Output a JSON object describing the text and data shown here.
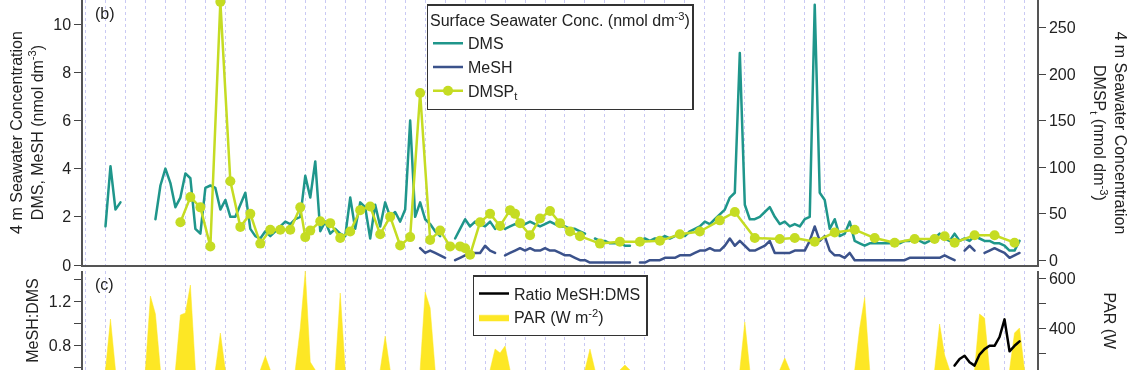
{
  "chart_data": [
    {
      "type": "line",
      "annotations": [
        "(b)"
      ],
      "ylabel": "4 m Seawater Concentration\nDMS, MeSH (nmol dm$^{-3}$)",
      "y2label": "4 m Seawater Concentration\nDMSP$_{t}$ (nmol dm$^{-3}$)",
      "legend_title": "Surface Seawater Conc. (nmol dm$^{-3}$)",
      "ylim": [
        0,
        11
      ],
      "yticks": [
        0,
        2,
        4,
        6,
        8,
        10
      ],
      "y2lim": [
        -5,
        280
      ],
      "y2ticks": [
        0,
        50,
        100,
        150,
        200,
        250
      ],
      "grid": "x",
      "legend": "top",
      "tick_labels": "y",
      "categories": [
        null,
        null,
        null,
        null,
        null,
        null,
        null,
        null,
        null,
        null,
        null,
        null,
        null,
        null,
        null,
        null,
        null,
        null,
        null,
        null,
        null,
        null,
        null,
        null,
        null,
        null,
        null,
        null,
        null,
        null,
        null,
        null,
        null,
        null,
        null,
        null,
        null,
        null,
        null,
        null,
        null,
        null,
        null,
        null,
        null,
        null,
        null,
        null,
        null,
        null,
        null,
        null,
        null,
        null,
        null,
        null,
        null,
        null,
        null,
        null,
        null,
        null,
        null,
        null,
        null,
        null,
        null,
        null,
        null,
        null,
        null,
        null,
        null,
        null,
        null,
        null,
        null,
        null,
        null,
        null,
        null,
        null,
        null,
        null,
        null,
        null,
        null,
        null,
        null,
        null,
        null,
        null,
        null,
        null,
        null,
        null,
        null,
        null,
        null,
        null,
        null,
        null,
        null,
        null,
        null,
        null,
        null,
        null,
        null,
        null,
        null,
        null,
        null,
        null,
        null,
        null,
        null,
        null,
        null,
        null,
        null,
        null,
        null,
        null,
        null,
        null,
        null,
        null,
        null,
        null,
        null,
        null,
        null,
        null,
        null,
        null,
        null,
        null,
        null,
        null,
        null,
        null,
        null,
        null,
        null,
        null,
        null,
        null,
        null,
        null,
        null,
        null,
        null,
        null,
        null,
        null,
        null,
        null,
        null,
        null,
        null,
        null,
        null,
        null,
        null,
        null,
        null,
        null,
        null,
        null,
        null,
        null,
        null,
        null,
        null,
        null,
        null,
        null,
        null,
        null,
        null,
        null,
        null,
        null,
        null,
        null,
        null,
        null,
        null,
        null,
        null
      ],
      "series": [
        {
          "name": "DMS",
          "color": "#1f968b",
          "values": [
            null,
            null,
            null,
            null,
            1.6,
            4.1,
            2.3,
            2.6,
            null,
            null,
            null,
            null,
            null,
            null,
            1.9,
            3.3,
            4.0,
            3.4,
            2.4,
            2.8,
            3.8,
            3.6,
            1.5,
            1.3,
            3.2,
            3.3,
            3.2,
            2.3,
            2.7,
            2.0,
            2.0,
            2.5,
            3.0,
            1.5,
            1.2,
            1.1,
            1.4,
            1.2,
            1.4,
            1.6,
            1.8,
            1.7,
            1.9,
            2.0,
            3.7,
            2.8,
            4.3,
            1.4,
            1.8,
            1.3,
            1.5,
            1.3,
            1.2,
            2.8,
            1.5,
            2.6,
            2.4,
            1.1,
            2.5,
            1.6,
            2.6,
            2.0,
            2.2,
            1.8,
            2.3,
            6.0,
            2.0,
            2.6,
            1.9,
            1.7,
            1.4,
            1.2,
            null,
            null,
            1.1,
            1.5,
            1.9,
            1.6,
            1.8,
            1.7,
            1.6,
            1.8,
            1.5,
            null,
            1.5,
            1.6,
            1.7,
            1.6,
            1.7,
            1.8,
            1.7,
            1.6,
            1.7,
            1.8,
            1.7,
            1.6,
            1.6,
            1.5,
            1.5,
            1.4,
            1.3,
            null,
            1.1,
            1.0,
            1.0,
            0.9,
            0.9,
            0.9,
            0.8,
            0.8,
            null,
            1.0,
            1.1,
            1.0,
            1.1,
            1.1,
            1.2,
            1.1,
            1.2,
            1.3,
            1.2,
            1.4,
            1.5,
            1.6,
            1.8,
            1.7,
            1.9,
            2.1,
            2.3,
            2.8,
            3.0,
            8.8,
            2.5,
            1.9,
            1.9,
            2.0,
            2.2,
            2.4,
            2.0,
            1.7,
            1.8,
            1.6,
            1.7,
            1.6,
            1.9,
            2.0,
            10.8,
            3.0,
            2.7,
            1.5,
            1.9,
            1.2,
            1.3,
            1.8,
            1.0,
            0.9,
            0.8,
            0.9,
            0.9,
            0.9,
            0.9,
            0.9,
            0.9,
            0.9,
            1.0,
            1.0,
            1.1,
            1.0,
            0.9,
            1.0,
            1.1,
            1.3,
            1.1,
            1.0,
            1.3,
            1.0,
            1.1,
            1.0,
            1.2,
            1.1,
            1.0,
            1.0,
            0.9,
            0.9,
            0.8,
            0.6,
            0.6,
            1.0,
            null,
            null,
            null
          ]
        },
        {
          "name": "MeSH",
          "color": "#3b528b",
          "values": [
            null,
            null,
            null,
            null,
            null,
            null,
            null,
            null,
            null,
            null,
            null,
            null,
            null,
            null,
            null,
            null,
            null,
            null,
            null,
            null,
            null,
            null,
            null,
            null,
            null,
            null,
            null,
            null,
            null,
            null,
            null,
            null,
            null,
            null,
            null,
            null,
            null,
            null,
            null,
            null,
            null,
            null,
            null,
            null,
            null,
            null,
            null,
            null,
            null,
            null,
            null,
            null,
            null,
            null,
            null,
            null,
            null,
            null,
            null,
            null,
            null,
            null,
            null,
            null,
            null,
            null,
            null,
            0.7,
            0.5,
            0.6,
            0.5,
            0.4,
            0.3,
            null,
            0.2,
            0.3,
            0.4,
            0.5,
            0.5,
            0.5,
            0.8,
            0.6,
            0.5,
            null,
            0.4,
            0.5,
            0.6,
            0.7,
            0.6,
            0.7,
            0.6,
            0.6,
            0.7,
            0.6,
            0.6,
            0.5,
            0.4,
            0.4,
            0.3,
            0.2,
            0.2,
            0.1,
            0.1,
            0.1,
            0.1,
            0.1,
            0.1,
            0.1,
            0.1,
            0.1,
            null,
            0.1,
            0.1,
            0.2,
            0.2,
            0.2,
            0.3,
            0.3,
            0.3,
            0.4,
            0.4,
            0.4,
            0.5,
            0.6,
            0.6,
            0.7,
            0.6,
            0.6,
            0.8,
            1.1,
            0.8,
            1.0,
            0.8,
            0.6,
            0.6,
            0.7,
            0.8,
            1.0,
            0.5,
            0.5,
            0.5,
            0.5,
            0.6,
            0.6,
            0.6,
            1.0,
            1.6,
            1.0,
            1.2,
            0.6,
            0.4,
            0.4,
            0.3,
            0.5,
            0.2,
            0.2,
            0.2,
            0.2,
            0.2,
            0.2,
            0.2,
            0.2,
            0.2,
            0.2,
            0.2,
            0.3,
            0.3,
            0.3,
            0.3,
            0.3,
            0.3,
            0.3,
            0.4,
            0.3,
            0.2,
            null,
            0.6,
            0.8,
            0.6,
            null,
            0.5,
            0.6,
            0.7,
            0.6,
            0.5,
            0.3,
            0.4,
            0.5,
            null,
            null,
            null
          ]
        },
        {
          "name": "DMSP$_{t}$",
          "color": "#c5dc23",
          "axis": "y2",
          "marker": "circle",
          "values": [
            null,
            null,
            null,
            null,
            null,
            null,
            null,
            null,
            null,
            null,
            null,
            null,
            null,
            null,
            null,
            null,
            null,
            null,
            null,
            41,
            null,
            68,
            null,
            57,
            null,
            15,
            null,
            278,
            null,
            85,
            null,
            36,
            null,
            50,
            null,
            18,
            null,
            33,
            null,
            33,
            null,
            33,
            null,
            57,
            25,
            32,
            null,
            42,
            null,
            40,
            null,
            24,
            null,
            31,
            null,
            54,
            null,
            58,
            null,
            28,
            null,
            47,
            null,
            16,
            null,
            25,
            null,
            180,
            null,
            22,
            null,
            32,
            null,
            15,
            null,
            15,
            13,
            6,
            null,
            41,
            null,
            50,
            null,
            37,
            null,
            54,
            50,
            40,
            null,
            27,
            null,
            45,
            null,
            53,
            null,
            40,
            null,
            31,
            null,
            26,
            null,
            null,
            null,
            18,
            null,
            null,
            null,
            20,
            null,
            null,
            null,
            20,
            null,
            null,
            null,
            21,
            null,
            null,
            null,
            28,
            null,
            null,
            null,
            31,
            null,
            null,
            null,
            43,
            null,
            null,
            52,
            null,
            null,
            null,
            24,
            null,
            null,
            null,
            null,
            23,
            null,
            null,
            24,
            null,
            null,
            null,
            20,
            null,
            null,
            null,
            30,
            null,
            null,
            null,
            33,
            null,
            null,
            null,
            24,
            null,
            null,
            null,
            19,
            null,
            null,
            null,
            23,
            null,
            null,
            null,
            23,
            null,
            26,
            null,
            19,
            null,
            null,
            null,
            27,
            null,
            null,
            null,
            27,
            null,
            null,
            null,
            19,
            null,
            null,
            null,
            null
          ]
        }
      ]
    },
    {
      "type": "line",
      "annotations": [
        "(c)"
      ],
      "ylabel": "MeSH:DMS",
      "y2label": "PAR (W",
      "ylim": [
        0.58,
        1.48
      ],
      "yticks": [
        {
          "value": 1.4,
          "label": null
        },
        1.2,
        {
          "value": 1.0,
          "label": null
        },
        0.8,
        {
          "value": 0.6,
          "label": null
        }
      ],
      "y2lim": [
        232,
        628
      ],
      "y2ticks": [
        600,
        {
          "value": 500,
          "label": null
        },
        400,
        {
          "value": 300,
          "label": null
        }
      ],
      "grid": "x",
      "legend": "top",
      "tick_labels": "y",
      "categories": [
        null,
        null,
        null,
        null,
        null,
        null,
        null,
        null,
        null,
        null,
        null,
        null,
        null,
        null,
        null,
        null,
        null,
        null,
        null,
        null,
        null,
        null,
        null,
        null,
        null,
        null,
        null,
        null,
        null,
        null,
        null,
        null,
        null,
        null,
        null,
        null,
        null,
        null,
        null,
        null,
        null,
        null,
        null,
        null,
        null,
        null,
        null,
        null,
        null,
        null,
        null,
        null,
        null,
        null,
        null,
        null,
        null,
        null,
        null,
        null,
        null,
        null,
        null,
        null,
        null,
        null,
        null,
        null,
        null,
        null,
        null,
        null,
        null,
        null,
        null,
        null,
        null,
        null,
        null,
        null,
        null,
        null,
        null,
        null,
        null,
        null,
        null,
        null,
        null,
        null,
        null,
        null,
        null,
        null,
        null,
        null,
        null,
        null,
        null,
        null,
        null,
        null,
        null,
        null,
        null,
        null,
        null,
        null,
        null,
        null,
        null,
        null,
        null,
        null,
        null,
        null,
        null,
        null,
        null,
        null,
        null,
        null,
        null,
        null,
        null,
        null,
        null,
        null,
        null,
        null,
        null,
        null,
        null,
        null,
        null,
        null,
        null,
        null,
        null,
        null,
        null,
        null,
        null,
        null,
        null,
        null,
        null,
        null,
        null,
        null,
        null,
        null,
        null,
        null,
        null,
        null,
        null,
        null,
        null,
        null,
        null,
        null,
        null,
        null,
        null,
        null,
        null,
        null,
        null,
        null,
        null,
        null,
        null,
        null,
        null,
        null,
        null,
        null,
        null,
        null,
        null,
        null,
        null,
        null,
        null,
        null,
        null,
        null,
        null,
        null,
        null
      ],
      "series": [
        {
          "name": "Ratio MeSH:DMS",
          "color": "#000000",
          "values": [
            null,
            null,
            null,
            null,
            null,
            null,
            null,
            null,
            null,
            null,
            null,
            null,
            null,
            null,
            null,
            null,
            null,
            null,
            null,
            null,
            null,
            null,
            null,
            null,
            null,
            null,
            null,
            null,
            null,
            null,
            null,
            null,
            null,
            null,
            null,
            null,
            null,
            null,
            null,
            null,
            null,
            null,
            null,
            null,
            null,
            null,
            null,
            null,
            null,
            null,
            null,
            null,
            null,
            null,
            null,
            null,
            null,
            null,
            null,
            null,
            null,
            null,
            null,
            null,
            null,
            null,
            null,
            null,
            null,
            null,
            null,
            null,
            null,
            null,
            null,
            null,
            null,
            null,
            null,
            null,
            null,
            null,
            null,
            null,
            null,
            null,
            null,
            null,
            null,
            null,
            null,
            null,
            null,
            null,
            null,
            null,
            null,
            null,
            null,
            null,
            null,
            null,
            null,
            null,
            null,
            null,
            null,
            null,
            null,
            null,
            null,
            null,
            null,
            null,
            null,
            null,
            null,
            null,
            null,
            null,
            null,
            null,
            null,
            null,
            null,
            null,
            null,
            null,
            null,
            null,
            null,
            null,
            null,
            null,
            null,
            null,
            null,
            null,
            null,
            null,
            null,
            null,
            null,
            null,
            null,
            null,
            null,
            null,
            null,
            null,
            null,
            null,
            null,
            null,
            null,
            null,
            null,
            null,
            null,
            null,
            null,
            null,
            null,
            null,
            null,
            null,
            null,
            null,
            null,
            null,
            null,
            null,
            null,
            null,
            0.62,
            0.68,
            0.71,
            0.65,
            0.62,
            0.72,
            0.77,
            0.8,
            0.8,
            0.88,
            1.04,
            0.75,
            0.8,
            0.84,
            null,
            null,
            null
          ]
        },
        {
          "name": "PAR (W m$^{-2}$)",
          "type": "area",
          "axis": "y2",
          "color": "#fde725",
          "values": [
            null,
            null,
            null,
            null,
            232,
            436,
            232,
            null,
            null,
            null,
            null,
            null,
            232,
            528,
            456,
            232,
            null,
            null,
            232,
            452,
            460,
            572,
            232,
            null,
            null,
            null,
            232,
            380,
            232,
            null,
            null,
            null,
            null,
            null,
            null,
            232,
            288,
            232,
            null,
            null,
            null,
            null,
            232,
            400,
            628,
            264,
            232,
            null,
            null,
            null,
            232,
            540,
            232,
            null,
            null,
            null,
            null,
            null,
            null,
            232,
            368,
            232,
            null,
            null,
            null,
            null,
            null,
            232,
            544,
            480,
            232,
            null,
            null,
            null,
            null,
            null,
            null,
            null,
            null,
            null,
            null,
            232,
            316,
            300,
            328,
            232,
            null,
            null,
            null,
            null,
            null,
            null,
            null,
            null,
            null,
            null,
            null,
            null,
            null,
            null,
            232,
            316,
            232,
            null,
            null,
            null,
            null,
            232,
            252,
            232,
            null,
            null,
            null,
            null,
            null,
            null,
            null,
            null,
            null,
            null,
            null,
            null,
            null,
            null,
            null,
            null,
            null,
            null,
            null,
            null,
            null,
            232,
            424,
            232,
            null,
            null,
            null,
            null,
            null,
            232,
            280,
            232,
            null,
            null,
            null,
            null,
            null,
            null,
            null,
            null,
            null,
            null,
            null,
            null,
            232,
            400,
            522,
            232,
            null,
            null,
            null,
            null,
            null,
            null,
            null,
            null,
            null,
            null,
            null,
            null,
            232,
            416,
            292,
            232,
            null,
            null,
            null,
            null,
            232,
            456,
            440,
            232,
            null,
            null,
            null,
            232,
            380,
            400,
            232,
            null,
            null
          ]
        }
      ]
    }
  ]
}
